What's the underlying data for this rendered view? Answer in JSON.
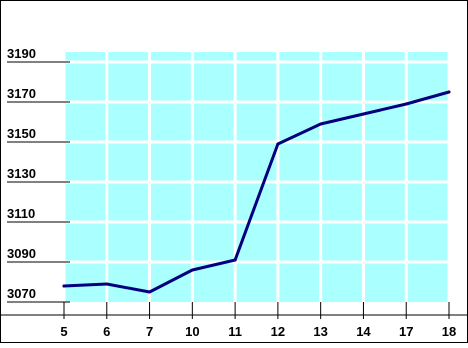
{
  "chart_data": {
    "type": "line",
    "title": "",
    "xlabel": "",
    "ylabel": "",
    "categories": [
      "5",
      "6",
      "7",
      "10",
      "11",
      "12",
      "13",
      "14",
      "17",
      "18"
    ],
    "series": [
      {
        "values": [
          3078,
          3079,
          3075,
          3086,
          3091,
          3149,
          3159,
          3164,
          3169,
          3175
        ]
      }
    ],
    "ylim": [
      3070,
      3195
    ],
    "yticks": [
      3070,
      3090,
      3110,
      3130,
      3150,
      3170,
      3190
    ],
    "grid": true,
    "colors": {
      "plot_background": "#aaffff",
      "grid": "#ffffff",
      "line": "#00007f",
      "axis": "#000000"
    }
  }
}
